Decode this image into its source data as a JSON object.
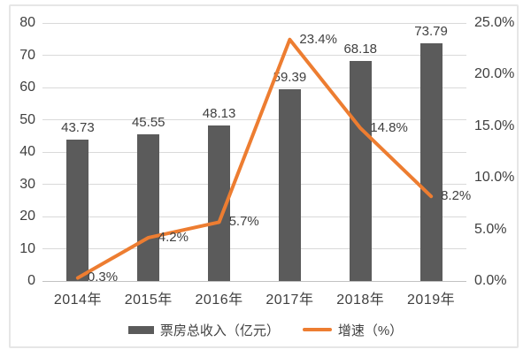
{
  "chart_data": {
    "type": "combo_bar_line",
    "title": "",
    "categories": [
      "2014年",
      "2015年",
      "2016年",
      "2017年",
      "2018年",
      "2019年"
    ],
    "series": [
      {
        "name": "票房总收入（亿元）",
        "kind": "bar",
        "axis": "left",
        "color": "#5b5b5b",
        "values": [
          43.73,
          45.55,
          48.13,
          59.39,
          68.18,
          73.79
        ],
        "data_labels": [
          "43.73",
          "45.55",
          "48.13",
          "59.39",
          "68.18",
          "73.79"
        ]
      },
      {
        "name": "增速（%）",
        "kind": "line",
        "axis": "right",
        "color": "#ED7D31",
        "values": [
          0.3,
          4.2,
          5.7,
          23.4,
          14.8,
          8.2
        ],
        "data_labels": [
          "0.3%",
          "4.2%",
          "5.7%",
          "23.4%",
          "14.8%",
          "8.2%"
        ]
      }
    ],
    "axes": {
      "left": {
        "min": 0,
        "max": 80,
        "tick_labels": [
          "0",
          "10",
          "20",
          "30",
          "40",
          "50",
          "60",
          "70",
          "80"
        ]
      },
      "right": {
        "min": 0,
        "max": 25,
        "tick_labels": [
          "0.0%",
          "5.0%",
          "10.0%",
          "15.0%",
          "20.0%",
          "25.0%"
        ]
      }
    },
    "grid": "horizontal",
    "legend_position": "bottom",
    "colors": {
      "grid": "#d9d9d9",
      "baseline": "#c2c2c2",
      "text": "#3f3f3f",
      "frame": "#e6e6e6",
      "background": "#ffffff"
    }
  }
}
